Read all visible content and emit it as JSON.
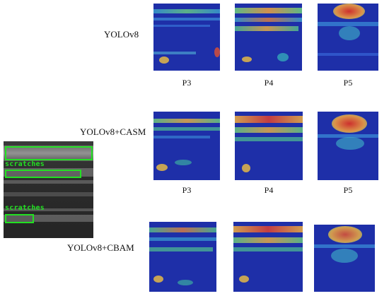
{
  "rows": [
    {
      "model": "YOLOv8"
    },
    {
      "model": "YOLOv8+CASM"
    },
    {
      "model": "YOLOv8+CBAM"
    }
  ],
  "columns": [
    "P3",
    "P4",
    "P5"
  ],
  "detections": [
    {
      "label": ""
    },
    {
      "label": "scratches"
    },
    {
      "label": "scratches"
    }
  ],
  "colors": {
    "heatmap_base": "#1e2fa8",
    "detection_box": "#22e022"
  }
}
